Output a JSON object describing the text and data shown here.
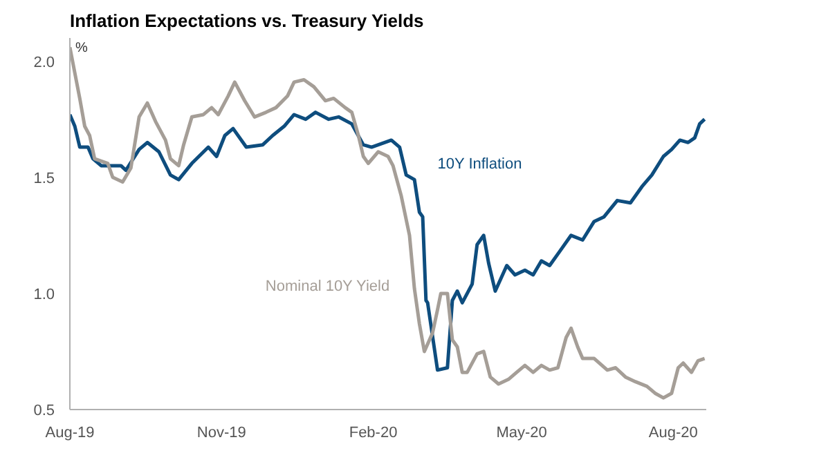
{
  "chart_data": {
    "type": "line",
    "title": "Inflation Expectations vs. Treasury Yields",
    "ylabel": "%",
    "xlim": [
      "2019-08-01",
      "2020-08-21"
    ],
    "xticks": [
      {
        "value": "2019-08-01",
        "label": "Aug-19"
      },
      {
        "value": "2019-11-01",
        "label": "Nov-19"
      },
      {
        "value": "2020-02-01",
        "label": "Feb-20"
      },
      {
        "value": "2020-05-01",
        "label": "May-20"
      },
      {
        "value": "2020-08-01",
        "label": "Aug-20"
      }
    ],
    "ylim": [
      0.5,
      2.1
    ],
    "yticks": [
      {
        "value": 0.5,
        "label": "0.5"
      },
      {
        "value": 1.0,
        "label": "1.0"
      },
      {
        "value": 1.5,
        "label": "1.5"
      },
      {
        "value": 2.0,
        "label": "2.0"
      }
    ],
    "grid": false,
    "legend": false,
    "line_style": "solid",
    "marker": "none",
    "series": [
      {
        "name": "10Y Inflation",
        "color": "#0e4d7e",
        "x": [
          "2019-08-01",
          "2019-08-04",
          "2019-08-07",
          "2019-08-12",
          "2019-08-15",
          "2019-08-20",
          "2019-09-01",
          "2019-09-04",
          "2019-09-12",
          "2019-09-17",
          "2019-09-24",
          "2019-10-01",
          "2019-10-06",
          "2019-10-14",
          "2019-10-24",
          "2019-10-29",
          "2019-11-03",
          "2019-11-08",
          "2019-11-16",
          "2019-11-26",
          "2019-12-02",
          "2019-12-09",
          "2019-12-15",
          "2019-12-22",
          "2019-12-28",
          "2020-01-05",
          "2020-01-11",
          "2020-01-19",
          "2020-01-26",
          "2020-01-31",
          "2020-02-12",
          "2020-02-17",
          "2020-02-21",
          "2020-02-26",
          "2020-02-29",
          "2020-03-02",
          "2020-03-04",
          "2020-03-05",
          "2020-03-11",
          "2020-03-17",
          "2020-03-20",
          "2020-03-23",
          "2020-03-26",
          "2020-04-01",
          "2020-04-04",
          "2020-04-08",
          "2020-04-11",
          "2020-04-15",
          "2020-04-22",
          "2020-04-27",
          "2020-05-03",
          "2020-05-08",
          "2020-05-13",
          "2020-05-18",
          "2020-05-24",
          "2020-05-31",
          "2020-06-07",
          "2020-06-14",
          "2020-06-20",
          "2020-06-28",
          "2020-07-06",
          "2020-07-13",
          "2020-07-19",
          "2020-07-26",
          "2020-07-31",
          "2020-08-05",
          "2020-08-10",
          "2020-08-14",
          "2020-08-17",
          "2020-08-20"
        ],
        "values": [
          1.77,
          1.72,
          1.63,
          1.63,
          1.58,
          1.55,
          1.55,
          1.53,
          1.62,
          1.65,
          1.61,
          1.51,
          1.49,
          1.56,
          1.63,
          1.59,
          1.68,
          1.71,
          1.63,
          1.64,
          1.68,
          1.72,
          1.77,
          1.75,
          1.78,
          1.75,
          1.76,
          1.73,
          1.64,
          1.63,
          1.66,
          1.63,
          1.51,
          1.49,
          1.35,
          1.33,
          0.97,
          0.96,
          0.67,
          0.68,
          0.97,
          1.01,
          0.96,
          1.04,
          1.21,
          1.25,
          1.13,
          1.01,
          1.12,
          1.08,
          1.1,
          1.08,
          1.14,
          1.12,
          1.18,
          1.25,
          1.23,
          1.31,
          1.33,
          1.4,
          1.39,
          1.46,
          1.51,
          1.59,
          1.62,
          1.66,
          1.65,
          1.67,
          1.73,
          1.75
        ]
      },
      {
        "name": "Nominal 10Y Yield",
        "color": "#a59e97",
        "x": [
          "2019-08-01",
          "2019-08-04",
          "2019-08-07",
          "2019-08-10",
          "2019-08-13",
          "2019-08-16",
          "2019-08-24",
          "2019-08-27",
          "2019-09-02",
          "2019-09-07",
          "2019-09-12",
          "2019-09-17",
          "2019-09-22",
          "2019-09-28",
          "2019-10-01",
          "2019-10-06",
          "2019-10-09",
          "2019-10-14",
          "2019-10-21",
          "2019-10-26",
          "2019-10-30",
          "2019-11-05",
          "2019-11-09",
          "2019-11-15",
          "2019-11-21",
          "2019-11-28",
          "2019-12-04",
          "2019-12-11",
          "2019-12-15",
          "2019-12-21",
          "2019-12-27",
          "2020-01-03",
          "2020-01-08",
          "2020-01-15",
          "2020-01-19",
          "2020-01-23",
          "2020-01-26",
          "2020-01-29",
          "2020-02-04",
          "2020-02-10",
          "2020-02-13",
          "2020-02-18",
          "2020-02-23",
          "2020-02-26",
          "2020-02-29",
          "2020-03-03",
          "2020-03-08",
          "2020-03-11",
          "2020-03-13",
          "2020-03-17",
          "2020-03-20",
          "2020-03-23",
          "2020-03-26",
          "2020-03-29",
          "2020-04-04",
          "2020-04-08",
          "2020-04-12",
          "2020-04-17",
          "2020-04-23",
          "2020-04-28",
          "2020-05-03",
          "2020-05-08",
          "2020-05-13",
          "2020-05-18",
          "2020-05-23",
          "2020-05-28",
          "2020-05-31",
          "2020-06-04",
          "2020-06-07",
          "2020-06-14",
          "2020-06-22",
          "2020-06-27",
          "2020-07-03",
          "2020-07-09",
          "2020-07-16",
          "2020-07-21",
          "2020-07-26",
          "2020-07-31",
          "2020-08-04",
          "2020-08-07",
          "2020-08-12",
          "2020-08-16",
          "2020-08-20"
        ],
        "values": [
          2.06,
          1.95,
          1.84,
          1.72,
          1.68,
          1.58,
          1.56,
          1.5,
          1.48,
          1.54,
          1.76,
          1.82,
          1.74,
          1.66,
          1.58,
          1.55,
          1.64,
          1.76,
          1.77,
          1.8,
          1.77,
          1.85,
          1.91,
          1.83,
          1.76,
          1.78,
          1.8,
          1.85,
          1.91,
          1.92,
          1.89,
          1.83,
          1.84,
          1.8,
          1.78,
          1.68,
          1.59,
          1.56,
          1.61,
          1.59,
          1.55,
          1.42,
          1.25,
          1.02,
          0.87,
          0.75,
          0.83,
          0.93,
          1.0,
          1.0,
          0.8,
          0.77,
          0.66,
          0.66,
          0.74,
          0.75,
          0.64,
          0.61,
          0.63,
          0.66,
          0.69,
          0.66,
          0.69,
          0.67,
          0.68,
          0.81,
          0.85,
          0.77,
          0.72,
          0.72,
          0.67,
          0.68,
          0.64,
          0.62,
          0.6,
          0.57,
          0.55,
          0.57,
          0.68,
          0.7,
          0.66,
          0.71,
          0.72
        ]
      }
    ]
  }
}
